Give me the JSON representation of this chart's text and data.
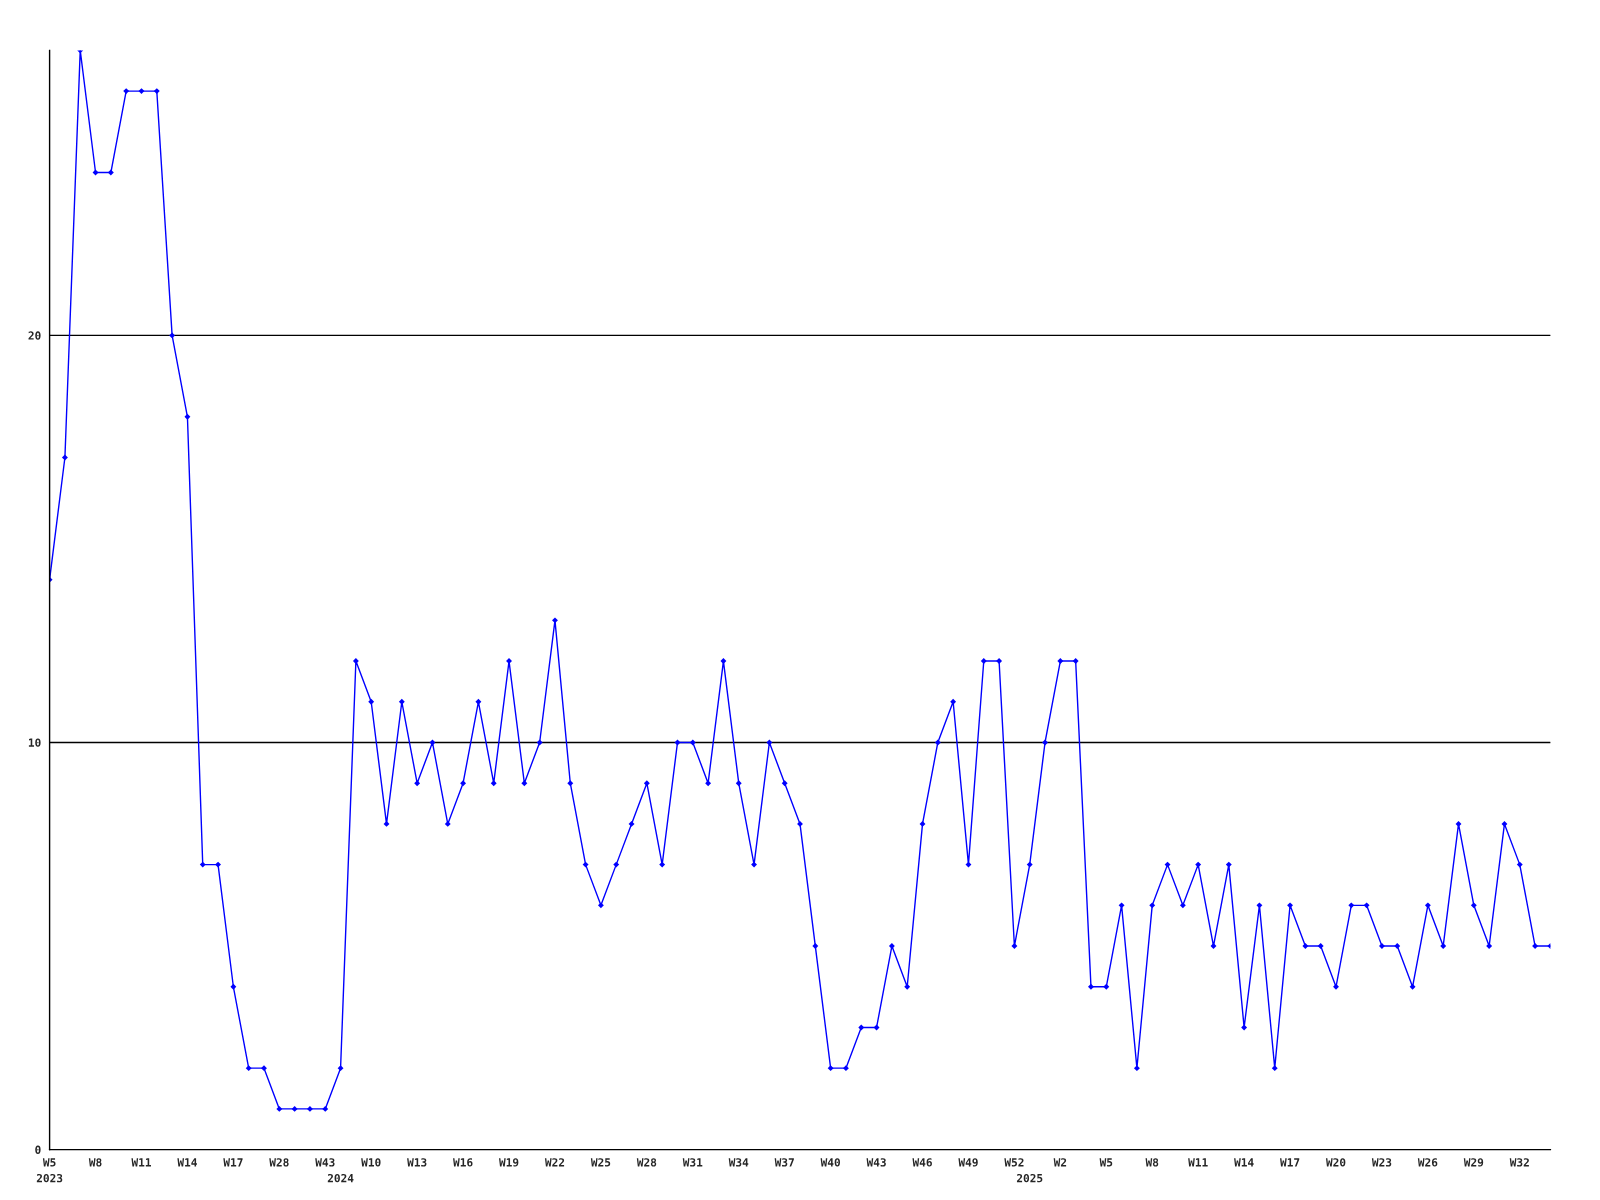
{
  "chart_data": {
    "type": "line",
    "categories": [
      "W5\n2023",
      null,
      null,
      "W8",
      null,
      null,
      "W11",
      null,
      null,
      "W14",
      null,
      null,
      "W17",
      null,
      null,
      "W28",
      null,
      null,
      "W43",
      "\n2024",
      null,
      "W10",
      null,
      null,
      "W13",
      null,
      null,
      "W16",
      null,
      null,
      "W19",
      null,
      null,
      "W22",
      null,
      null,
      "W25",
      null,
      null,
      "W28",
      null,
      null,
      "W31",
      null,
      null,
      "W34",
      null,
      null,
      "W37",
      null,
      null,
      "W40",
      null,
      null,
      "W43",
      null,
      null,
      "W46",
      null,
      null,
      "W49",
      null,
      null,
      "W52",
      "\n2025",
      null,
      "W2",
      null,
      null,
      "W5",
      null,
      null,
      "W8",
      null,
      null,
      "W11",
      null,
      null,
      "W14",
      null,
      null,
      "W17",
      null,
      null,
      "W20",
      null,
      null,
      "W23",
      null,
      null,
      "W26",
      null,
      null,
      "W29",
      null,
      null,
      "W32",
      null,
      null
    ],
    "series": [
      {
        "color": "#0000ff",
        "values": [
          14,
          17,
          27,
          24,
          24,
          26,
          26,
          26,
          20,
          18,
          7,
          7,
          4,
          2,
          2,
          1,
          1,
          1,
          1,
          2,
          12,
          11,
          8,
          11,
          9,
          10,
          8,
          9,
          11,
          9,
          12,
          9,
          10,
          13,
          9,
          7,
          6,
          7,
          8,
          9,
          7,
          10,
          10,
          9,
          12,
          9,
          7,
          10,
          9,
          8,
          5,
          2,
          2,
          3,
          3,
          5,
          4,
          8,
          10,
          11,
          7,
          12,
          12,
          5,
          7,
          10,
          12,
          12,
          4,
          4,
          6,
          2,
          6,
          7,
          6,
          7,
          5,
          7,
          3,
          6,
          2,
          6,
          5,
          5,
          4,
          6,
          6,
          5,
          5,
          4,
          6,
          5,
          8,
          6,
          5,
          8,
          7,
          5,
          5
        ]
      }
    ],
    "ylim": [
      0,
      27
    ],
    "yticks": [
      0,
      10,
      20
    ],
    "grid": "y",
    "marker": "diamond",
    "line_style": "solid"
  }
}
